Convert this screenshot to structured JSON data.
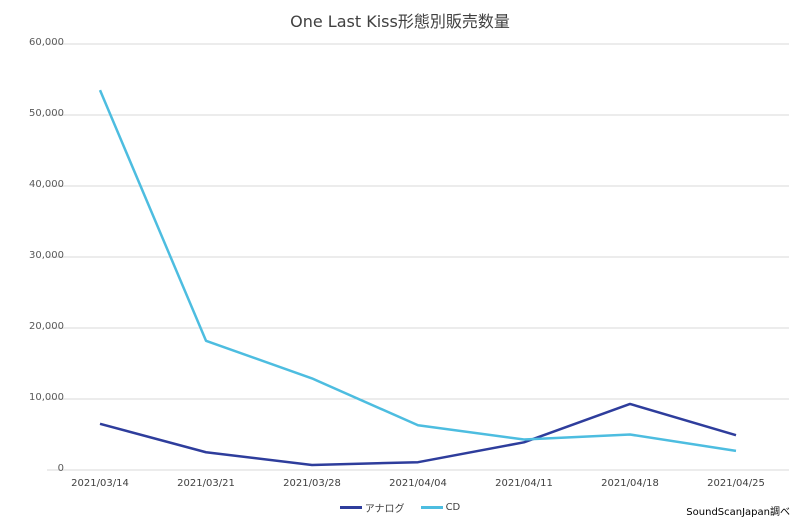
{
  "chart_data": {
    "type": "line",
    "title": "One Last Kiss形態別販売数量",
    "xlabel": "",
    "ylabel": "",
    "categories": [
      "2021/03/14",
      "2021/03/21",
      "2021/03/28",
      "2021/04/04",
      "2021/04/11",
      "2021/04/18",
      "2021/04/25"
    ],
    "series": [
      {
        "name": "アナログ",
        "color": "#2e3d9c",
        "values": [
          6500,
          2500,
          700,
          1100,
          3900,
          9300,
          4900
        ]
      },
      {
        "name": "CD",
        "color": "#4dbde0",
        "values": [
          53500,
          18200,
          12900,
          6300,
          4300,
          5000,
          2700
        ]
      }
    ],
    "ylim": [
      0,
      60000
    ],
    "yticks": [
      0,
      10000,
      20000,
      30000,
      40000,
      50000,
      60000
    ],
    "ytick_labels": [
      "0",
      "10,000",
      "20,000",
      "30,000",
      "40,000",
      "50,000",
      "60,000"
    ],
    "grid": true,
    "legend_position": "bottom",
    "annotations": [
      "SoundScanJapan調べ"
    ]
  },
  "source_note": "SoundScanJapan調べ"
}
